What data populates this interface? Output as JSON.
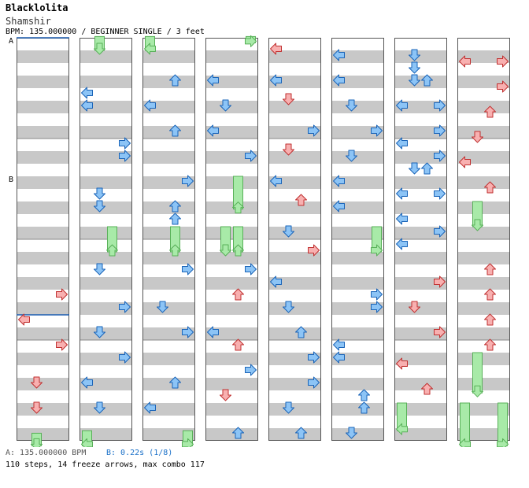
{
  "header": {
    "title": "Blacklolita",
    "subtitle": "Shamshir",
    "info": "BPM: 135.000000 / BEGINNER SINGLE / 3 feet"
  },
  "markers": {
    "a": {
      "label": "A",
      "beat": 0
    },
    "b": {
      "label": "B",
      "beat": 11
    }
  },
  "footer": {
    "bpm_text": "A: 135.000000 BPM",
    "stop_text": "B: 0.22s (1/8)",
    "steps_text": "110 steps, 14 freeze arrows, max combo 117"
  },
  "colors": {
    "quarter": "#5ba6ec",
    "eighth": "#f08888",
    "freeze": "#a8eaa8",
    "freeze_stroke": "#58b058",
    "stripe": "#c8c8c8",
    "frame": "#555555",
    "marker_line": "#1a5cb0"
  },
  "chart_data": {
    "type": "table",
    "columns_count": 8,
    "beats_per_column": 16,
    "lanes": [
      "left",
      "down",
      "up",
      "right"
    ],
    "notes": [
      {
        "col": 0,
        "lane": 0,
        "beat": 11,
        "note": "up"
      }
    ],
    "arrows": [
      {
        "col": 0,
        "lane": 3,
        "beat": 10,
        "color": "r"
      },
      {
        "col": 0,
        "lane": 0,
        "beat": 11,
        "color": "r"
      },
      {
        "col": 0,
        "lane": 3,
        "beat": 12,
        "color": "r"
      },
      {
        "col": 0,
        "lane": 1,
        "beat": 13.5,
        "color": "r"
      },
      {
        "col": 0,
        "lane": 1,
        "beat": 14.5,
        "color": "r"
      },
      {
        "col": 1,
        "lane": 0,
        "beat": 2,
        "color": "b"
      },
      {
        "col": 1,
        "lane": 0,
        "beat": 2.5,
        "color": "b"
      },
      {
        "col": 1,
        "lane": 3,
        "beat": 4,
        "color": "b"
      },
      {
        "col": 1,
        "lane": 3,
        "beat": 4.5,
        "color": "b"
      },
      {
        "col": 1,
        "lane": 1,
        "beat": 6,
        "color": "b"
      },
      {
        "col": 1,
        "lane": 1,
        "beat": 6.5,
        "color": "b"
      },
      {
        "col": 1,
        "lane": 1,
        "beat": 9,
        "color": "b"
      },
      {
        "col": 1,
        "lane": 3,
        "beat": 10.5,
        "color": "b"
      },
      {
        "col": 1,
        "lane": 1,
        "beat": 11.5,
        "color": "b"
      },
      {
        "col": 1,
        "lane": 3,
        "beat": 12.5,
        "color": "b"
      },
      {
        "col": 1,
        "lane": 0,
        "beat": 13.5,
        "color": "b"
      },
      {
        "col": 1,
        "lane": 1,
        "beat": 14.5,
        "color": "b"
      },
      {
        "col": 2,
        "lane": 2,
        "beat": 1.5,
        "color": "b"
      },
      {
        "col": 2,
        "lane": 0,
        "beat": 2.5,
        "color": "b"
      },
      {
        "col": 2,
        "lane": 2,
        "beat": 3.5,
        "color": "b"
      },
      {
        "col": 2,
        "lane": 3,
        "beat": 5.5,
        "color": "b"
      },
      {
        "col": 2,
        "lane": 2,
        "beat": 6.5,
        "color": "b"
      },
      {
        "col": 2,
        "lane": 2,
        "beat": 7,
        "color": "b"
      },
      {
        "col": 2,
        "lane": 3,
        "beat": 9,
        "color": "b"
      },
      {
        "col": 2,
        "lane": 1,
        "beat": 10.5,
        "color": "b"
      },
      {
        "col": 2,
        "lane": 3,
        "beat": 11.5,
        "color": "b"
      },
      {
        "col": 2,
        "lane": 2,
        "beat": 13.5,
        "color": "b"
      },
      {
        "col": 2,
        "lane": 0,
        "beat": 14.5,
        "color": "b"
      },
      {
        "col": 3,
        "lane": 0,
        "beat": 1.5,
        "color": "b"
      },
      {
        "col": 3,
        "lane": 1,
        "beat": 2.5,
        "color": "b"
      },
      {
        "col": 3,
        "lane": 0,
        "beat": 3.5,
        "color": "b"
      },
      {
        "col": 3,
        "lane": 3,
        "beat": 4.5,
        "color": "b"
      },
      {
        "col": 3,
        "lane": 3,
        "beat": 9,
        "color": "b"
      },
      {
        "col": 3,
        "lane": 2,
        "beat": 10,
        "color": "r"
      },
      {
        "col": 3,
        "lane": 0,
        "beat": 11.5,
        "color": "b"
      },
      {
        "col": 3,
        "lane": 2,
        "beat": 12,
        "color": "r"
      },
      {
        "col": 3,
        "lane": 3,
        "beat": 13,
        "color": "b"
      },
      {
        "col": 3,
        "lane": 1,
        "beat": 14,
        "color": "r"
      },
      {
        "col": 3,
        "lane": 2,
        "beat": 15.5,
        "color": "b"
      },
      {
        "col": 4,
        "lane": 0,
        "beat": 0.25,
        "color": "r"
      },
      {
        "col": 4,
        "lane": 0,
        "beat": 1.5,
        "color": "b"
      },
      {
        "col": 4,
        "lane": 1,
        "beat": 2.25,
        "color": "r"
      },
      {
        "col": 4,
        "lane": 3,
        "beat": 3.5,
        "color": "b"
      },
      {
        "col": 4,
        "lane": 1,
        "beat": 4.25,
        "color": "r"
      },
      {
        "col": 4,
        "lane": 0,
        "beat": 5.5,
        "color": "b"
      },
      {
        "col": 4,
        "lane": 2,
        "beat": 6.25,
        "color": "r"
      },
      {
        "col": 4,
        "lane": 1,
        "beat": 7.5,
        "color": "b"
      },
      {
        "col": 4,
        "lane": 3,
        "beat": 8.25,
        "color": "r"
      },
      {
        "col": 4,
        "lane": 0,
        "beat": 9.5,
        "color": "b"
      },
      {
        "col": 4,
        "lane": 1,
        "beat": 10.5,
        "color": "b"
      },
      {
        "col": 4,
        "lane": 2,
        "beat": 11.5,
        "color": "b"
      },
      {
        "col": 4,
        "lane": 3,
        "beat": 12.5,
        "color": "b"
      },
      {
        "col": 4,
        "lane": 3,
        "beat": 13.5,
        "color": "b"
      },
      {
        "col": 4,
        "lane": 1,
        "beat": 14.5,
        "color": "b"
      },
      {
        "col": 4,
        "lane": 2,
        "beat": 15.5,
        "color": "b"
      },
      {
        "col": 5,
        "lane": 0,
        "beat": 0.5,
        "color": "b"
      },
      {
        "col": 5,
        "lane": 0,
        "beat": 1.5,
        "color": "b"
      },
      {
        "col": 5,
        "lane": 1,
        "beat": 2.5,
        "color": "b"
      },
      {
        "col": 5,
        "lane": 3,
        "beat": 3.5,
        "color": "b"
      },
      {
        "col": 5,
        "lane": 1,
        "beat": 4.5,
        "color": "b"
      },
      {
        "col": 5,
        "lane": 0,
        "beat": 5.5,
        "color": "b"
      },
      {
        "col": 5,
        "lane": 0,
        "beat": 6.5,
        "color": "b"
      },
      {
        "col": 5,
        "lane": 3,
        "beat": 10,
        "color": "b"
      },
      {
        "col": 5,
        "lane": 3,
        "beat": 10.5,
        "color": "b"
      },
      {
        "col": 5,
        "lane": 0,
        "beat": 12,
        "color": "b"
      },
      {
        "col": 5,
        "lane": 0,
        "beat": 12.5,
        "color": "b"
      },
      {
        "col": 5,
        "lane": 2,
        "beat": 14,
        "color": "b"
      },
      {
        "col": 5,
        "lane": 2,
        "beat": 14.5,
        "color": "b"
      },
      {
        "col": 5,
        "lane": 1,
        "beat": 15.5,
        "color": "b"
      },
      {
        "col": 6,
        "lane": 1,
        "beat": 0.5,
        "color": "b"
      },
      {
        "col": 6,
        "lane": 1,
        "beat": 1,
        "color": "b"
      },
      {
        "col": 6,
        "lane": 1,
        "beat": 1.5,
        "color": "b"
      },
      {
        "col": 6,
        "lane": 2,
        "beat": 1.5,
        "color": "b"
      },
      {
        "col": 6,
        "lane": 0,
        "beat": 2.5,
        "color": "b"
      },
      {
        "col": 6,
        "lane": 3,
        "beat": 2.5,
        "color": "b"
      },
      {
        "col": 6,
        "lane": 3,
        "beat": 3.5,
        "color": "b"
      },
      {
        "col": 6,
        "lane": 0,
        "beat": 4,
        "color": "b"
      },
      {
        "col": 6,
        "lane": 3,
        "beat": 4.5,
        "color": "b"
      },
      {
        "col": 6,
        "lane": 1,
        "beat": 5,
        "color": "b"
      },
      {
        "col": 6,
        "lane": 2,
        "beat": 5,
        "color": "b"
      },
      {
        "col": 6,
        "lane": 0,
        "beat": 6,
        "color": "b"
      },
      {
        "col": 6,
        "lane": 3,
        "beat": 6,
        "color": "b"
      },
      {
        "col": 6,
        "lane": 0,
        "beat": 7,
        "color": "b"
      },
      {
        "col": 6,
        "lane": 3,
        "beat": 7.5,
        "color": "b"
      },
      {
        "col": 6,
        "lane": 0,
        "beat": 8,
        "color": "b"
      },
      {
        "col": 6,
        "lane": 3,
        "beat": 9.5,
        "color": "r"
      },
      {
        "col": 6,
        "lane": 1,
        "beat": 10.5,
        "color": "r"
      },
      {
        "col": 6,
        "lane": 3,
        "beat": 11.5,
        "color": "r"
      },
      {
        "col": 6,
        "lane": 0,
        "beat": 12.75,
        "color": "r"
      },
      {
        "col": 6,
        "lane": 2,
        "beat": 13.75,
        "color": "r"
      },
      {
        "col": 7,
        "lane": 0,
        "beat": 0.75,
        "color": "r"
      },
      {
        "col": 7,
        "lane": 3,
        "beat": 0.75,
        "color": "r"
      },
      {
        "col": 7,
        "lane": 3,
        "beat": 1.75,
        "color": "r"
      },
      {
        "col": 7,
        "lane": 2,
        "beat": 2.75,
        "color": "r"
      },
      {
        "col": 7,
        "lane": 1,
        "beat": 3.75,
        "color": "r"
      },
      {
        "col": 7,
        "lane": 0,
        "beat": 4.75,
        "color": "r"
      },
      {
        "col": 7,
        "lane": 2,
        "beat": 5.75,
        "color": "r"
      },
      {
        "col": 7,
        "lane": 2,
        "beat": 9,
        "color": "r"
      },
      {
        "col": 7,
        "lane": 2,
        "beat": 10,
        "color": "r"
      },
      {
        "col": 7,
        "lane": 2,
        "beat": 11,
        "color": "r"
      },
      {
        "col": 7,
        "lane": 2,
        "beat": 12,
        "color": "r"
      }
    ],
    "freezes": [
      {
        "col": 0,
        "lane": 1,
        "start": 15.7,
        "end": 16.2
      },
      {
        "col": 1,
        "lane": 1,
        "start": -0.3,
        "end": 0.5
      },
      {
        "col": 1,
        "lane": 2,
        "start": 7.5,
        "end": 8.5
      },
      {
        "col": 1,
        "lane": 0,
        "start": 15.6,
        "end": 16.2
      },
      {
        "col": 2,
        "lane": 0,
        "start": -0.3,
        "end": 0.5
      },
      {
        "col": 2,
        "lane": 2,
        "start": 7.5,
        "end": 8.5
      },
      {
        "col": 2,
        "lane": 3,
        "start": 15.6,
        "end": 16.2
      },
      {
        "col": 3,
        "lane": 3,
        "start": -0.3,
        "end": 0.2
      },
      {
        "col": 3,
        "lane": 2,
        "start": 5.5,
        "end": 6.8
      },
      {
        "col": 3,
        "lane": 1,
        "start": 7.5,
        "end": 8.5
      },
      {
        "col": 3,
        "lane": 2,
        "start": 7.5,
        "end": 8.5
      },
      {
        "col": 5,
        "lane": 3,
        "start": 7.5,
        "end": 8.5
      },
      {
        "col": 6,
        "lane": 0,
        "start": 14.5,
        "end": 15.6
      },
      {
        "col": 7,
        "lane": 1,
        "start": 6.5,
        "end": 7.5
      },
      {
        "col": 7,
        "lane": 1,
        "start": 12.5,
        "end": 14.1
      },
      {
        "col": 7,
        "lane": 0,
        "start": 14.5,
        "end": 16.2
      },
      {
        "col": 7,
        "lane": 3,
        "start": 14.5,
        "end": 16.2
      }
    ]
  }
}
